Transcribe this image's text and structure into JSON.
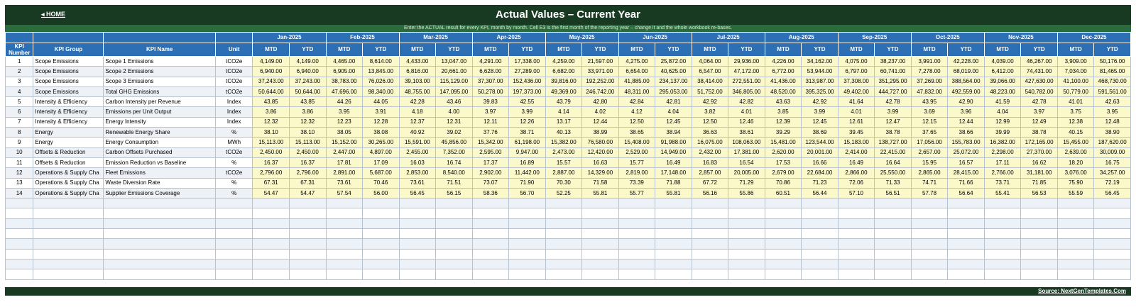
{
  "header": {
    "home_label": "◂ HOME",
    "title": "Actual Values  –  Current Year",
    "instructions": "Enter the ACTUAL result for every KPI, month by month. Cell E3 is the first month of the reporting year – change it and the whole workbook re-bases."
  },
  "columns": {
    "kpi_number": "KPI Number",
    "kpi_group": "KPI Group",
    "kpi_name": "KPI Name",
    "unit": "Unit",
    "mtd": "MTD",
    "ytd": "YTD"
  },
  "months": [
    "Jan-2025",
    "Feb-2025",
    "Mar-2025",
    "Apr-2025",
    "May-2025",
    "Jun-2025",
    "Jul-2025",
    "Aug-2025",
    "Sep-2025",
    "Oct-2025",
    "Nov-2025",
    "Dec-2025"
  ],
  "rows": [
    {
      "num": "1",
      "group": "Scope Emissions",
      "name": "Scope 1 Emissions",
      "unit": "tCO2e",
      "vals": [
        "4,149.00",
        "4,149.00",
        "4,465.00",
        "8,614.00",
        "4,433.00",
        "13,047.00",
        "4,291.00",
        "17,338.00",
        "4,259.00",
        "21,597.00",
        "4,275.00",
        "25,872.00",
        "4,064.00",
        "29,936.00",
        "4,226.00",
        "34,162.00",
        "4,075.00",
        "38,237.00",
        "3,991.00",
        "42,228.00",
        "4,039.00",
        "46,267.00",
        "3,909.00",
        "50,176.00"
      ]
    },
    {
      "num": "2",
      "group": "Scope Emissions",
      "name": "Scope 2 Emissions",
      "unit": "tCO2e",
      "vals": [
        "6,940.00",
        "6,940.00",
        "6,905.00",
        "13,845.00",
        "6,816.00",
        "20,661.00",
        "6,628.00",
        "27,289.00",
        "6,682.00",
        "33,971.00",
        "6,654.00",
        "40,625.00",
        "6,547.00",
        "47,172.00",
        "6,772.00",
        "53,944.00",
        "6,797.00",
        "60,741.00",
        "7,278.00",
        "68,019.00",
        "6,412.00",
        "74,431.00",
        "7,034.00",
        "81,465.00"
      ]
    },
    {
      "num": "3",
      "group": "Scope Emissions",
      "name": "Scope 3 Emissions",
      "unit": "tCO2e",
      "vals": [
        "37,243.00",
        "37,243.00",
        "38,783.00",
        "76,026.00",
        "39,103.00",
        "115,129.00",
        "37,307.00",
        "152,436.00",
        "39,816.00",
        "192,252.00",
        "41,885.00",
        "234,137.00",
        "38,414.00",
        "272,551.00",
        "41,436.00",
        "313,987.00",
        "37,308.00",
        "351,295.00",
        "37,269.00",
        "388,564.00",
        "39,066.00",
        "427,630.00",
        "41,100.00",
        "468,730.00"
      ]
    },
    {
      "num": "4",
      "group": "Scope Emissions",
      "name": "Total GHG Emissions",
      "unit": "tCO2e",
      "vals": [
        "50,644.00",
        "50,644.00",
        "47,696.00",
        "98,340.00",
        "48,755.00",
        "147,095.00",
        "50,278.00",
        "197,373.00",
        "49,369.00",
        "246,742.00",
        "48,311.00",
        "295,053.00",
        "51,752.00",
        "346,805.00",
        "48,520.00",
        "395,325.00",
        "49,402.00",
        "444,727.00",
        "47,832.00",
        "492,559.00",
        "48,223.00",
        "540,782.00",
        "50,779.00",
        "591,561.00"
      ]
    },
    {
      "num": "5",
      "group": "Intensity & Efficiency",
      "name": "Carbon Intensity per Revenue",
      "unit": "Index",
      "vals": [
        "43.85",
        "43.85",
        "44.26",
        "44.05",
        "42.28",
        "43.46",
        "39.83",
        "42.55",
        "43.79",
        "42.80",
        "42.84",
        "42.81",
        "42.92",
        "42.82",
        "43.63",
        "42.92",
        "41.64",
        "42.78",
        "43.95",
        "42.90",
        "41.59",
        "42.78",
        "41.01",
        "42.63"
      ]
    },
    {
      "num": "6",
      "group": "Intensity & Efficiency",
      "name": "Emissions per Unit Output",
      "unit": "Index",
      "vals": [
        "3.86",
        "3.86",
        "3.95",
        "3.91",
        "4.18",
        "4.00",
        "3.97",
        "3.99",
        "4.14",
        "4.02",
        "4.12",
        "4.04",
        "3.82",
        "4.01",
        "3.85",
        "3.99",
        "4.01",
        "3.99",
        "3.69",
        "3.96",
        "4.04",
        "3.97",
        "3.75",
        "3.95"
      ]
    },
    {
      "num": "7",
      "group": "Intensity & Efficiency",
      "name": "Energy Intensity",
      "unit": "Index",
      "vals": [
        "12.32",
        "12.32",
        "12.23",
        "12.28",
        "12.37",
        "12.31",
        "12.11",
        "12.26",
        "13.17",
        "12.44",
        "12.50",
        "12.45",
        "12.50",
        "12.46",
        "12.39",
        "12.45",
        "12.61",
        "12.47",
        "12.15",
        "12.44",
        "12.99",
        "12.49",
        "12.38",
        "12.48"
      ]
    },
    {
      "num": "8",
      "group": "Energy",
      "name": "Renewable Energy Share",
      "unit": "%",
      "vals": [
        "38.10",
        "38.10",
        "38.05",
        "38.08",
        "40.92",
        "39.02",
        "37.76",
        "38.71",
        "40.13",
        "38.99",
        "38.65",
        "38.94",
        "36.63",
        "38.61",
        "39.29",
        "38.69",
        "39.45",
        "38.78",
        "37.65",
        "38.66",
        "39.99",
        "38.78",
        "40.15",
        "38.90"
      ]
    },
    {
      "num": "9",
      "group": "Energy",
      "name": "Energy Consumption",
      "unit": "MWh",
      "vals": [
        "15,113.00",
        "15,113.00",
        "15,152.00",
        "30,265.00",
        "15,591.00",
        "45,856.00",
        "15,342.00",
        "61,198.00",
        "15,382.00",
        "76,580.00",
        "15,408.00",
        "91,988.00",
        "16,075.00",
        "108,063.00",
        "15,481.00",
        "123,544.00",
        "15,183.00",
        "138,727.00",
        "17,056.00",
        "155,783.00",
        "16,382.00",
        "172,165.00",
        "15,455.00",
        "187,620.00"
      ]
    },
    {
      "num": "10",
      "group": "Offsets & Reduction",
      "name": "Carbon Offsets Purchased",
      "unit": "tCO2e",
      "vals": [
        "2,450.00",
        "2,450.00",
        "2,447.00",
        "4,897.00",
        "2,455.00",
        "7,352.00",
        "2,595.00",
        "9,947.00",
        "2,473.00",
        "12,420.00",
        "2,529.00",
        "14,949.00",
        "2,432.00",
        "17,381.00",
        "2,620.00",
        "20,001.00",
        "2,414.00",
        "22,415.00",
        "2,657.00",
        "25,072.00",
        "2,298.00",
        "27,370.00",
        "2,639.00",
        "30,009.00"
      ]
    },
    {
      "num": "11",
      "group": "Offsets & Reduction",
      "name": "Emission Reduction vs Baseline",
      "unit": "%",
      "vals": [
        "16.37",
        "16.37",
        "17.81",
        "17.09",
        "16.03",
        "16.74",
        "17.37",
        "16.89",
        "15.57",
        "16.63",
        "15.77",
        "16.49",
        "16.83",
        "16.54",
        "17.53",
        "16.66",
        "16.49",
        "16.64",
        "15.95",
        "16.57",
        "17.11",
        "16.62",
        "18.20",
        "16.75"
      ]
    },
    {
      "num": "12",
      "group": "Operations & Supply Cha",
      "name": "Fleet Emissions",
      "unit": "tCO2e",
      "vals": [
        "2,796.00",
        "2,796.00",
        "2,891.00",
        "5,687.00",
        "2,853.00",
        "8,540.00",
        "2,902.00",
        "11,442.00",
        "2,887.00",
        "14,329.00",
        "2,819.00",
        "17,148.00",
        "2,857.00",
        "20,005.00",
        "2,679.00",
        "22,684.00",
        "2,866.00",
        "25,550.00",
        "2,865.00",
        "28,415.00",
        "2,766.00",
        "31,181.00",
        "3,076.00",
        "34,257.00"
      ]
    },
    {
      "num": "13",
      "group": "Operations & Supply Cha",
      "name": "Waste Diversion Rate",
      "unit": "%",
      "vals": [
        "67.31",
        "67.31",
        "73.61",
        "70.46",
        "73.61",
        "71.51",
        "73.07",
        "71.90",
        "70.30",
        "71.58",
        "73.39",
        "71.88",
        "67.72",
        "71.29",
        "70.86",
        "71.23",
        "72.06",
        "71.33",
        "74.71",
        "71.66",
        "73.71",
        "71.85",
        "75.90",
        "72.19"
      ]
    },
    {
      "num": "14",
      "group": "Operations & Supply Cha",
      "name": "Supplier Emissions Coverage",
      "unit": "%",
      "vals": [
        "54.47",
        "54.47",
        "57.54",
        "56.00",
        "56.45",
        "56.15",
        "58.36",
        "56.70",
        "52.25",
        "55.81",
        "55.77",
        "55.81",
        "56.16",
        "55.86",
        "60.51",
        "56.44",
        "57.10",
        "56.51",
        "57.78",
        "56.64",
        "55.41",
        "56.53",
        "55.59",
        "56.45"
      ]
    }
  ],
  "empty_row_count": 8,
  "footer": {
    "source": "Source: NextGenTemplates.Com"
  }
}
